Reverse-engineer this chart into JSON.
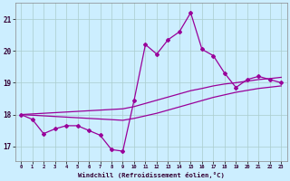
{
  "xlabel": "Windchill (Refroidissement éolien,°C)",
  "x_ticks": [
    0,
    1,
    2,
    3,
    4,
    5,
    6,
    7,
    8,
    9,
    10,
    11,
    12,
    13,
    14,
    15,
    16,
    17,
    18,
    19,
    20,
    21,
    22,
    23
  ],
  "y_ticks": [
    17,
    18,
    19,
    20,
    21
  ],
  "xlim": [
    -0.5,
    23.5
  ],
  "ylim": [
    16.55,
    21.5
  ],
  "background_color": "#cceeff",
  "line_color": "#990099",
  "grid_color": "#aacccc",
  "hours": [
    0,
    1,
    2,
    3,
    4,
    5,
    6,
    7,
    8,
    9,
    10,
    11,
    12,
    13,
    14,
    15,
    16,
    17,
    18,
    19,
    20,
    21,
    22,
    23
  ],
  "windchill": [
    18.0,
    17.85,
    17.4,
    17.55,
    17.65,
    17.65,
    17.5,
    17.35,
    16.9,
    16.85,
    18.45,
    20.2,
    19.9,
    20.35,
    20.6,
    21.2,
    20.05,
    19.85,
    19.3,
    18.85,
    19.1,
    19.2,
    19.1,
    19.0
  ],
  "smooth1": [
    18.0,
    18.02,
    18.04,
    18.06,
    18.08,
    18.1,
    18.12,
    18.14,
    18.16,
    18.18,
    18.25,
    18.35,
    18.45,
    18.55,
    18.65,
    18.75,
    18.82,
    18.9,
    18.96,
    19.0,
    19.05,
    19.1,
    19.13,
    19.17
  ],
  "smooth2": [
    18.0,
    17.98,
    17.96,
    17.94,
    17.92,
    17.9,
    17.88,
    17.86,
    17.84,
    17.82,
    17.88,
    17.96,
    18.04,
    18.14,
    18.24,
    18.34,
    18.44,
    18.54,
    18.62,
    18.7,
    18.76,
    18.82,
    18.86,
    18.9
  ]
}
